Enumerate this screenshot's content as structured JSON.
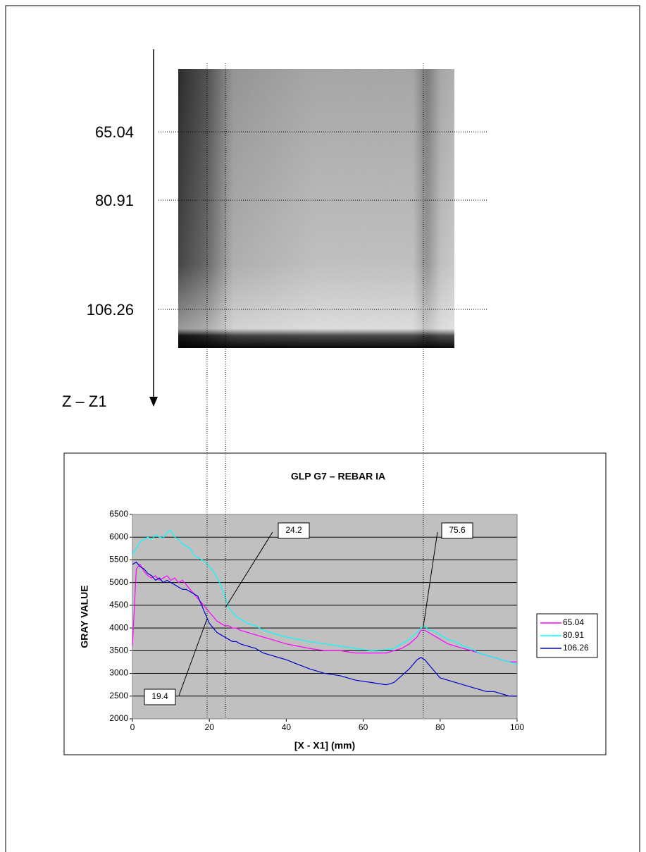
{
  "chart_data": {
    "type": "line",
    "title": "GLP G7 – REBAR IA",
    "x_label": "[X - X1] (mm)",
    "y_label": "GRAY VALUE",
    "x": [
      0,
      1,
      2,
      3,
      4,
      5,
      6,
      7,
      8,
      9,
      10,
      11,
      12,
      13,
      14,
      15,
      16,
      17,
      18,
      19,
      20,
      21,
      22,
      23,
      24,
      25,
      26,
      27,
      28,
      30,
      32,
      34,
      36,
      38,
      40,
      43,
      46,
      50,
      54,
      58,
      62,
      66,
      68,
      70,
      72,
      74,
      75,
      76,
      77,
      78,
      80,
      82,
      84,
      86,
      88,
      90,
      92,
      94,
      96,
      98,
      100
    ],
    "series": [
      {
        "name": "65.04",
        "color": "#ff00ff",
        "values": [
          3600,
          5300,
          5400,
          5250,
          5150,
          5100,
          5150,
          5050,
          5100,
          5150,
          5050,
          5100,
          5000,
          5050,
          4950,
          4850,
          4750,
          4650,
          4550,
          4450,
          4350,
          4250,
          4150,
          4100,
          4050,
          4050,
          4000,
          4000,
          3950,
          3900,
          3850,
          3800,
          3750,
          3700,
          3650,
          3600,
          3550,
          3500,
          3500,
          3450,
          3450,
          3450,
          3500,
          3550,
          3650,
          3800,
          3950,
          3950,
          3900,
          3850,
          3750,
          3650,
          3600,
          3550,
          3500,
          3450,
          3400,
          3350,
          3300,
          3250,
          3250
        ]
      },
      {
        "name": "80.91",
        "color": "#00ffff",
        "values": [
          5600,
          5750,
          5900,
          5950,
          6000,
          5950,
          6050,
          6000,
          5980,
          6100,
          6150,
          6000,
          5950,
          5850,
          5800,
          5750,
          5600,
          5550,
          5500,
          5450,
          5350,
          5250,
          5100,
          4950,
          4700,
          4450,
          4350,
          4250,
          4200,
          4100,
          4050,
          3950,
          3900,
          3850,
          3800,
          3750,
          3700,
          3650,
          3600,
          3550,
          3500,
          3520,
          3550,
          3650,
          3750,
          3900,
          4000,
          4050,
          3950,
          3950,
          3850,
          3750,
          3700,
          3600,
          3550,
          3450,
          3400,
          3350,
          3300,
          3250,
          3200
        ]
      },
      {
        "name": "106.26",
        "color": "#0000cc",
        "values": [
          5400,
          5450,
          5350,
          5300,
          5200,
          5150,
          5050,
          5100,
          5000,
          5050,
          5000,
          4950,
          4900,
          4850,
          4850,
          4800,
          4750,
          4700,
          4500,
          4300,
          4100,
          4000,
          3900,
          3850,
          3800,
          3750,
          3700,
          3700,
          3650,
          3600,
          3550,
          3450,
          3400,
          3350,
          3300,
          3200,
          3100,
          3000,
          2950,
          2850,
          2800,
          2750,
          2800,
          2950,
          3100,
          3300,
          3350,
          3300,
          3200,
          3100,
          2900,
          2850,
          2800,
          2750,
          2700,
          2650,
          2600,
          2600,
          2550,
          2500,
          2500
        ]
      }
    ],
    "xlim": [
      0,
      100
    ],
    "xticks": [
      0,
      20,
      40,
      60,
      80,
      100
    ],
    "ylim": [
      2000,
      6500
    ],
    "yticks": [
      2000,
      2500,
      3000,
      3500,
      4000,
      4500,
      5000,
      5500,
      6000,
      6500
    ],
    "grid": true,
    "legend": "right",
    "annotations": [
      24.2,
      75.6,
      19.4
    ],
    "z_axis": {
      "label": "Z – Z1",
      "profiles": [
        65.04,
        80.91,
        106.26
      ]
    }
  }
}
